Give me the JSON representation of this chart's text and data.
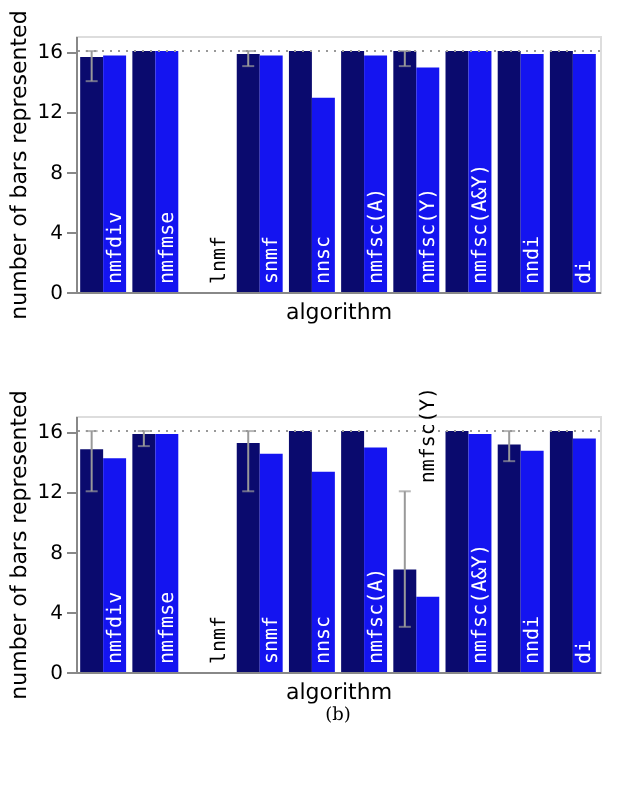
{
  "chart_data": [
    {
      "type": "bar",
      "categories": [
        "nmfdiv",
        "nmfmse",
        "lnmf",
        "snmf",
        "nnsc",
        "nmfsc(A)",
        "nmfsc(Y)",
        "nmfsc(A&Y)",
        "nndi",
        "di"
      ],
      "ylabel": "number of bars represented",
      "xlabel": "algorithm",
      "ylim": [
        0,
        17
      ],
      "yticks": [
        0,
        4,
        8,
        12,
        16
      ],
      "grid": false,
      "legend": false,
      "series": [
        {
          "color": "#0a0a6e",
          "values": [
            15.6,
            16,
            0,
            15.8,
            16,
            16,
            16,
            16,
            16,
            16
          ],
          "errors": [
            [
              14,
              16
            ],
            null,
            null,
            [
              15,
              16
            ],
            null,
            null,
            [
              15,
              16
            ],
            null,
            null,
            null
          ]
        },
        {
          "color": "#1414f0",
          "values": [
            15.7,
            16,
            0,
            15.7,
            12.9,
            15.7,
            14.9,
            16,
            15.8,
            15.8
          ]
        }
      ],
      "ref_lines": [
        {
          "axis": "y",
          "value": 16,
          "line_style": "dotted",
          "color": "#999999"
        }
      ]
    },
    {
      "type": "bar",
      "categories": [
        "nmfdiv",
        "nmfmse",
        "lnmf",
        "snmf",
        "nnsc",
        "nmfsc(A)",
        "nmfsc(Y)",
        "nmfsc(A&Y)",
        "nndi",
        "di"
      ],
      "ylabel": "number of bars represented",
      "xlabel": "algorithm",
      "ylim": [
        0,
        17
      ],
      "yticks": [
        0,
        4,
        8,
        12,
        16
      ],
      "grid": false,
      "legend": false,
      "series": [
        {
          "color": "#0a0a6e",
          "values": [
            14.8,
            15.8,
            0,
            15.2,
            16,
            16,
            6.8,
            16,
            15.1,
            16
          ],
          "errors": [
            [
              12,
              16
            ],
            [
              15,
              16
            ],
            null,
            [
              12,
              16
            ],
            null,
            null,
            [
              3,
              12
            ],
            null,
            [
              14,
              16
            ],
            null
          ]
        },
        {
          "color": "#1414f0",
          "values": [
            14.2,
            15.8,
            0,
            14.5,
            13.3,
            14.9,
            5.0,
            15.8,
            14.7,
            15.5
          ]
        }
      ],
      "ref_lines": [
        {
          "axis": "y",
          "value": 16,
          "line_style": "dotted",
          "color": "#999999"
        }
      ],
      "annotations": [
        "(b)"
      ]
    }
  ]
}
